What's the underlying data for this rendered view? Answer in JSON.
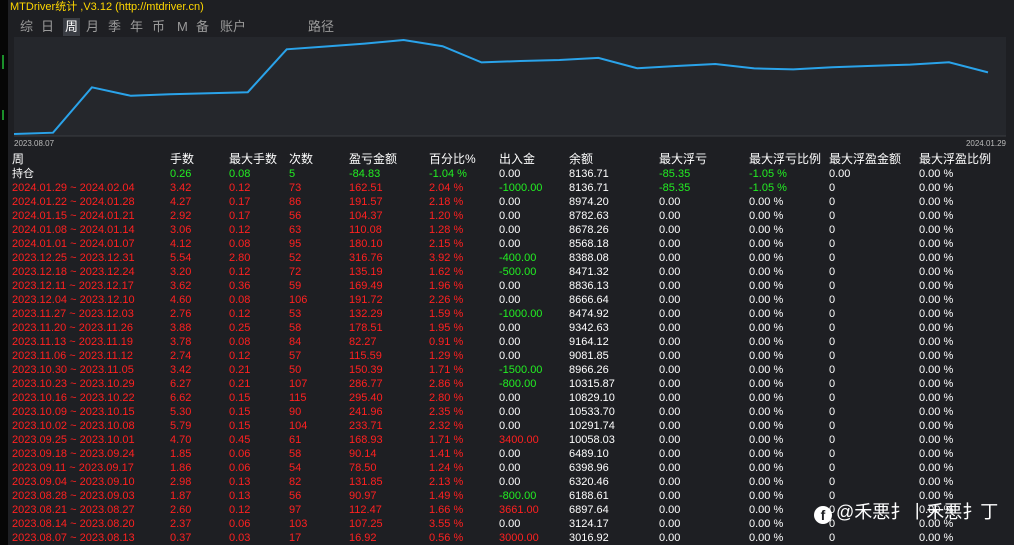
{
  "window": {
    "title": "MTDriver统计 ,V3.12 (http://mtdriver.cn)"
  },
  "tabs": [
    {
      "label": "综",
      "active": false
    },
    {
      "label": "日",
      "active": false
    },
    {
      "label": "周",
      "active": true
    },
    {
      "label": "月",
      "active": false
    },
    {
      "label": "季",
      "active": false
    },
    {
      "label": "年",
      "active": false
    },
    {
      "label": "币",
      "active": false
    },
    {
      "label": "M",
      "active": false
    },
    {
      "label": "备",
      "active": false
    },
    {
      "label": "账户",
      "active": false
    },
    {
      "label": "路径",
      "active": false
    }
  ],
  "chart": {
    "type": "line",
    "line_color": "#2aa3ea",
    "x_start_label": "2023.08.07",
    "x_end_label": "2024.01.29"
  },
  "chart_data": {
    "type": "line",
    "title": "",
    "x_labels": [
      "2023.08.07",
      "2024.01.29"
    ],
    "series": [
      {
        "values": [
          3016.92,
          3124.17,
          6897.64,
          6188.61,
          6320.46,
          6398.96,
          6489.1,
          10058.03,
          10291.74,
          10533.7,
          10829.1,
          10315.87,
          8966.26,
          9081.85,
          9164.12,
          9342.63,
          8474.92,
          8666.64,
          8836.13,
          8471.32,
          8388.08,
          8568.18,
          8678.26,
          8782.63,
          8974.2,
          8136.71
        ]
      }
    ]
  },
  "table": {
    "headers": [
      "周",
      "手数",
      "最大手数",
      "次数",
      "盈亏金额",
      "百分比%",
      "出入金",
      "余额",
      "最大浮亏",
      "最大浮亏比例",
      "最大浮盈金额",
      "最大浮盈比例"
    ],
    "holding": {
      "label": "持仓",
      "lots": "0.26",
      "max_lots": "0.08",
      "count": "5",
      "pl": "-84.83",
      "pct": "-1.04 %",
      "io": "0.00",
      "balance": "8136.71",
      "max_dd": "-85.35",
      "max_dd_pct": "-1.05 %",
      "max_fp": "0.00",
      "max_fp_pct": "0.00 %"
    },
    "rows": [
      {
        "period": "2024.01.29 ~ 2024.02.04",
        "lots": "3.42",
        "max_lots": "0.12",
        "count": "73",
        "pl": "162.51",
        "pct": "2.04 %",
        "io": "-1000.00",
        "balance": "8136.71",
        "max_dd": "-85.35",
        "max_dd_pct": "-1.05 %",
        "max_fp": "0",
        "max_fp_pct": "0.00 %"
      },
      {
        "period": "2024.01.22 ~ 2024.01.28",
        "lots": "4.27",
        "max_lots": "0.17",
        "count": "86",
        "pl": "191.57",
        "pct": "2.18 %",
        "io": "0.00",
        "balance": "8974.20",
        "max_dd": "0.00",
        "max_dd_pct": "0.00 %",
        "max_fp": "0",
        "max_fp_pct": "0.00 %"
      },
      {
        "period": "2024.01.15 ~ 2024.01.21",
        "lots": "2.92",
        "max_lots": "0.17",
        "count": "56",
        "pl": "104.37",
        "pct": "1.20 %",
        "io": "0.00",
        "balance": "8782.63",
        "max_dd": "0.00",
        "max_dd_pct": "0.00 %",
        "max_fp": "0",
        "max_fp_pct": "0.00 %"
      },
      {
        "period": "2024.01.08 ~ 2024.01.14",
        "lots": "3.06",
        "max_lots": "0.12",
        "count": "63",
        "pl": "110.08",
        "pct": "1.28 %",
        "io": "0.00",
        "balance": "8678.26",
        "max_dd": "0.00",
        "max_dd_pct": "0.00 %",
        "max_fp": "0",
        "max_fp_pct": "0.00 %"
      },
      {
        "period": "2024.01.01 ~ 2024.01.07",
        "lots": "4.12",
        "max_lots": "0.08",
        "count": "95",
        "pl": "180.10",
        "pct": "2.15 %",
        "io": "0.00",
        "balance": "8568.18",
        "max_dd": "0.00",
        "max_dd_pct": "0.00 %",
        "max_fp": "0",
        "max_fp_pct": "0.00 %"
      },
      {
        "period": "2023.12.25 ~ 2023.12.31",
        "lots": "5.54",
        "max_lots": "2.80",
        "count": "52",
        "pl": "316.76",
        "pct": "3.92 %",
        "io": "-400.00",
        "balance": "8388.08",
        "max_dd": "0.00",
        "max_dd_pct": "0.00 %",
        "max_fp": "0",
        "max_fp_pct": "0.00 %"
      },
      {
        "period": "2023.12.18 ~ 2023.12.24",
        "lots": "3.20",
        "max_lots": "0.12",
        "count": "72",
        "pl": "135.19",
        "pct": "1.62 %",
        "io": "-500.00",
        "balance": "8471.32",
        "max_dd": "0.00",
        "max_dd_pct": "0.00 %",
        "max_fp": "0",
        "max_fp_pct": "0.00 %"
      },
      {
        "period": "2023.12.11 ~ 2023.12.17",
        "lots": "3.62",
        "max_lots": "0.36",
        "count": "59",
        "pl": "169.49",
        "pct": "1.96 %",
        "io": "0.00",
        "balance": "8836.13",
        "max_dd": "0.00",
        "max_dd_pct": "0.00 %",
        "max_fp": "0",
        "max_fp_pct": "0.00 %"
      },
      {
        "period": "2023.12.04 ~ 2023.12.10",
        "lots": "4.60",
        "max_lots": "0.08",
        "count": "106",
        "pl": "191.72",
        "pct": "2.26 %",
        "io": "0.00",
        "balance": "8666.64",
        "max_dd": "0.00",
        "max_dd_pct": "0.00 %",
        "max_fp": "0",
        "max_fp_pct": "0.00 %"
      },
      {
        "period": "2023.11.27 ~ 2023.12.03",
        "lots": "2.76",
        "max_lots": "0.12",
        "count": "53",
        "pl": "132.29",
        "pct": "1.59 %",
        "io": "-1000.00",
        "balance": "8474.92",
        "max_dd": "0.00",
        "max_dd_pct": "0.00 %",
        "max_fp": "0",
        "max_fp_pct": "0.00 %"
      },
      {
        "period": "2023.11.20 ~ 2023.11.26",
        "lots": "3.88",
        "max_lots": "0.25",
        "count": "58",
        "pl": "178.51",
        "pct": "1.95 %",
        "io": "0.00",
        "balance": "9342.63",
        "max_dd": "0.00",
        "max_dd_pct": "0.00 %",
        "max_fp": "0",
        "max_fp_pct": "0.00 %"
      },
      {
        "period": "2023.11.13 ~ 2023.11.19",
        "lots": "3.78",
        "max_lots": "0.08",
        "count": "84",
        "pl": "82.27",
        "pct": "0.91 %",
        "io": "0.00",
        "balance": "9164.12",
        "max_dd": "0.00",
        "max_dd_pct": "0.00 %",
        "max_fp": "0",
        "max_fp_pct": "0.00 %"
      },
      {
        "period": "2023.11.06 ~ 2023.11.12",
        "lots": "2.74",
        "max_lots": "0.12",
        "count": "57",
        "pl": "115.59",
        "pct": "1.29 %",
        "io": "0.00",
        "balance": "9081.85",
        "max_dd": "0.00",
        "max_dd_pct": "0.00 %",
        "max_fp": "0",
        "max_fp_pct": "0.00 %"
      },
      {
        "period": "2023.10.30 ~ 2023.11.05",
        "lots": "3.42",
        "max_lots": "0.21",
        "count": "50",
        "pl": "150.39",
        "pct": "1.71 %",
        "io": "-1500.00",
        "balance": "8966.26",
        "max_dd": "0.00",
        "max_dd_pct": "0.00 %",
        "max_fp": "0",
        "max_fp_pct": "0.00 %"
      },
      {
        "period": "2023.10.23 ~ 2023.10.29",
        "lots": "6.27",
        "max_lots": "0.21",
        "count": "107",
        "pl": "286.77",
        "pct": "2.86 %",
        "io": "-800.00",
        "balance": "10315.87",
        "max_dd": "0.00",
        "max_dd_pct": "0.00 %",
        "max_fp": "0",
        "max_fp_pct": "0.00 %"
      },
      {
        "period": "2023.10.16 ~ 2023.10.22",
        "lots": "6.62",
        "max_lots": "0.15",
        "count": "115",
        "pl": "295.40",
        "pct": "2.80 %",
        "io": "0.00",
        "balance": "10829.10",
        "max_dd": "0.00",
        "max_dd_pct": "0.00 %",
        "max_fp": "0",
        "max_fp_pct": "0.00 %"
      },
      {
        "period": "2023.10.09 ~ 2023.10.15",
        "lots": "5.30",
        "max_lots": "0.15",
        "count": "90",
        "pl": "241.96",
        "pct": "2.35 %",
        "io": "0.00",
        "balance": "10533.70",
        "max_dd": "0.00",
        "max_dd_pct": "0.00 %",
        "max_fp": "0",
        "max_fp_pct": "0.00 %"
      },
      {
        "period": "2023.10.02 ~ 2023.10.08",
        "lots": "5.79",
        "max_lots": "0.15",
        "count": "104",
        "pl": "233.71",
        "pct": "2.32 %",
        "io": "0.00",
        "balance": "10291.74",
        "max_dd": "0.00",
        "max_dd_pct": "0.00 %",
        "max_fp": "0",
        "max_fp_pct": "0.00 %"
      },
      {
        "period": "2023.09.25 ~ 2023.10.01",
        "lots": "4.70",
        "max_lots": "0.45",
        "count": "61",
        "pl": "168.93",
        "pct": "1.71 %",
        "io": "3400.00",
        "balance": "10058.03",
        "max_dd": "0.00",
        "max_dd_pct": "0.00 %",
        "max_fp": "0",
        "max_fp_pct": "0.00 %"
      },
      {
        "period": "2023.09.18 ~ 2023.09.24",
        "lots": "1.85",
        "max_lots": "0.06",
        "count": "58",
        "pl": "90.14",
        "pct": "1.41 %",
        "io": "0.00",
        "balance": "6489.10",
        "max_dd": "0.00",
        "max_dd_pct": "0.00 %",
        "max_fp": "0",
        "max_fp_pct": "0.00 %"
      },
      {
        "period": "2023.09.11 ~ 2023.09.17",
        "lots": "1.86",
        "max_lots": "0.06",
        "count": "54",
        "pl": "78.50",
        "pct": "1.24 %",
        "io": "0.00",
        "balance": "6398.96",
        "max_dd": "0.00",
        "max_dd_pct": "0.00 %",
        "max_fp": "0",
        "max_fp_pct": "0.00 %"
      },
      {
        "period": "2023.09.04 ~ 2023.09.10",
        "lots": "2.98",
        "max_lots": "0.13",
        "count": "82",
        "pl": "131.85",
        "pct": "2.13 %",
        "io": "0.00",
        "balance": "6320.46",
        "max_dd": "0.00",
        "max_dd_pct": "0.00 %",
        "max_fp": "0",
        "max_fp_pct": "0.00 %"
      },
      {
        "period": "2023.08.28 ~ 2023.09.03",
        "lots": "1.87",
        "max_lots": "0.13",
        "count": "56",
        "pl": "90.97",
        "pct": "1.49 %",
        "io": "-800.00",
        "balance": "6188.61",
        "max_dd": "0.00",
        "max_dd_pct": "0.00 %",
        "max_fp": "0",
        "max_fp_pct": "0.00 %"
      },
      {
        "period": "2023.08.21 ~ 2023.08.27",
        "lots": "2.60",
        "max_lots": "0.12",
        "count": "97",
        "pl": "112.47",
        "pct": "1.66 %",
        "io": "3661.00",
        "balance": "6897.64",
        "max_dd": "0.00",
        "max_dd_pct": "0.00 %",
        "max_fp": "0",
        "max_fp_pct": "0.00 %"
      },
      {
        "period": "2023.08.14 ~ 2023.08.20",
        "lots": "2.37",
        "max_lots": "0.06",
        "count": "103",
        "pl": "107.25",
        "pct": "3.55 %",
        "io": "0.00",
        "balance": "3124.17",
        "max_dd": "0.00",
        "max_dd_pct": "0.00 %",
        "max_fp": "0",
        "max_fp_pct": "0.00 %"
      },
      {
        "period": "2023.08.07 ~ 2023.08.13",
        "lots": "0.37",
        "max_lots": "0.03",
        "count": "17",
        "pl": "16.92",
        "pct": "0.56 %",
        "io": "3000.00",
        "balance": "3016.92",
        "max_dd": "0.00",
        "max_dd_pct": "0.00 %",
        "max_fp": "0",
        "max_fp_pct": "0.00 %"
      }
    ]
  },
  "watermark": {
    "icon": "facebook-icon",
    "text": "@禾悪扌丨禾悪扌丁"
  }
}
